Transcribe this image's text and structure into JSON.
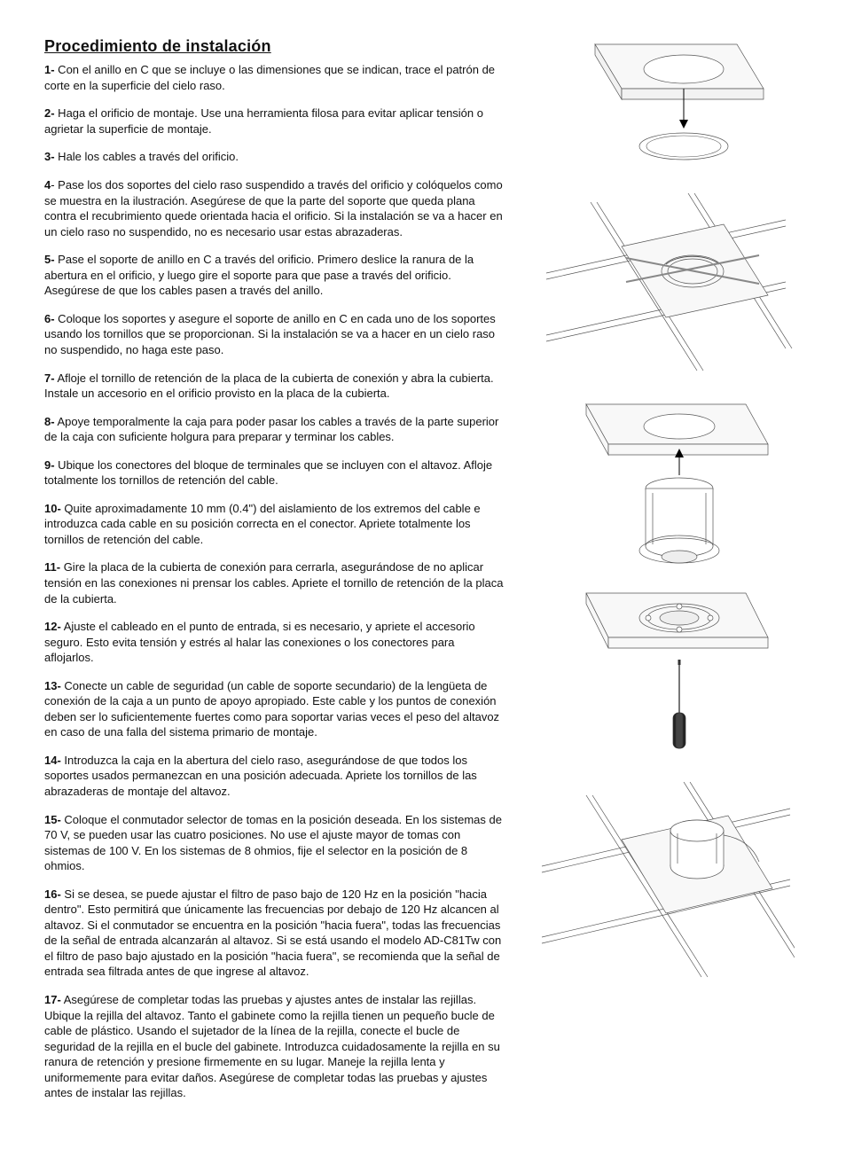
{
  "title": "Procedimiento de instalación",
  "steps": [
    {
      "n": "1-",
      "text": " Con el anillo en C que se incluye o las dimensiones que se indican, trace el patrón de corte en la superficie del cielo raso."
    },
    {
      "n": "2-",
      "text": " Haga el orificio de montaje. Use una herramienta filosa para evitar aplicar tensión o agrietar la superficie de montaje."
    },
    {
      "n": "3-",
      "text": " Hale los cables a través del orificio."
    },
    {
      "n": "4",
      "text": "- Pase los dos soportes del cielo raso suspendido a través del orificio y colóquelos como se muestra en la ilustración. Asegúrese de que la parte del soporte que queda plana contra el recubrimiento quede orientada hacia el orificio. Si la instalación se va a hacer en un cielo raso no suspendido, no es necesario usar estas abrazaderas."
    },
    {
      "n": "5-",
      "text": " Pase el soporte de anillo en C a través del orificio. Primero deslice la ranura de la abertura en el orificio, y luego gire el soporte para que pase a través del orificio. Asegúrese de que los cables pasen a través del anillo."
    },
    {
      "n": "6-",
      "text": " Coloque los soportes y asegure el soporte de anillo en C en cada uno de los soportes usando los tornillos que se proporcionan. Si la instalación se va a hacer en un cielo raso no suspendido, no haga este paso."
    },
    {
      "n": "7-",
      "text": " Afloje el tornillo de retención de la placa de la cubierta de conexión y abra la cubierta. Instale un accesorio en el orificio provisto en la placa de la cubierta."
    },
    {
      "n": "8-",
      "text": " Apoye temporalmente la caja para poder pasar los cables a través de la parte superior de la caja con suficiente holgura para preparar y terminar los cables."
    },
    {
      "n": "9-",
      "text": " Ubique los conectores del bloque de terminales que se incluyen con el altavoz. Afloje totalmente los tornillos de retención del cable."
    },
    {
      "n": "10-",
      "text": " Quite aproximadamente 10 mm (0.4\") del aislamiento de los extremos del cable e introduzca cada cable en su posición correcta en el conector. Apriete totalmente los tornillos de retención del cable."
    },
    {
      "n": "11-",
      "text": " Gire la placa de la cubierta de conexión para cerrarla, asegurándose de no aplicar tensión en las conexiones ni prensar los cables. Apriete el tornillo de retención de la placa de la cubierta."
    },
    {
      "n": "12-",
      "text": " Ajuste el cableado en el punto de entrada,  si es necesario, y apriete el accesorio seguro. Esto evita tensión y estrés al halar las conexiones o los conectores para aflojarlos."
    },
    {
      "n": "13-",
      "text": " Conecte un cable de seguridad (un cable de soporte secundario) de la lengüeta de conexión de la caja a un punto de apoyo apropiado. Este cable y los puntos de conexión deben ser lo suficientemente fuertes como para soportar varias veces el peso del altavoz en caso de una falla del sistema primario de montaje."
    },
    {
      "n": "14-",
      "text": " Introduzca la caja en la abertura del cielo raso, asegurándose de que todos los soportes usados permanezcan en una posición adecuada. Apriete los tornillos de las abrazaderas de montaje del altavoz."
    },
    {
      "n": "15-",
      "text": " Coloque el conmutador selector de tomas en la posición deseada. En los sistemas de 70 V, se pueden usar las cuatro posiciones. No use el ajuste mayor de tomas con sistemas de 100 V. En los sistemas de 8 ohmios, fije el selector en la posición de 8 ohmios."
    },
    {
      "n": "16-",
      "text": "  Si se desea, se puede ajustar el filtro de paso bajo de 120 Hz en la posición \"hacia dentro\". Esto permitirá que únicamente las frecuencias por debajo de 120 Hz alcancen al altavoz. Si el conmutador se encuentra en la posición \"hacia fuera\", todas las frecuencias de la señal de entrada alcanzarán al altavoz. Si se está usando el modelo AD-C81Tw con el filtro de paso bajo ajustado en la posición \"hacia fuera\", se recomienda que la señal de entrada sea filtrada antes de que ingrese al altavoz."
    },
    {
      "n": "17-",
      "text": "  Asegúrese de completar todas las pruebas y ajustes antes de instalar las rejillas. Ubique la rejilla del altavoz. Tanto el gabinete como la rejilla tienen un pequeño bucle de cable de plástico. Usando el sujetador de la línea de la rejilla, conecte el bucle de seguridad de la rejilla en el bucle del gabinete. Introduzca cuidadosamente la rejilla en su ranura de retención y presione firmemente en su lugar. Maneje la rejilla lenta y uniformemente para evitar daños. Asegúrese de completar todas las pruebas y ajustes antes de instalar las rejillas."
    }
  ],
  "figures": {
    "stroke": "#555555",
    "fill": "#f2f2f2",
    "thin": 0.7
  }
}
